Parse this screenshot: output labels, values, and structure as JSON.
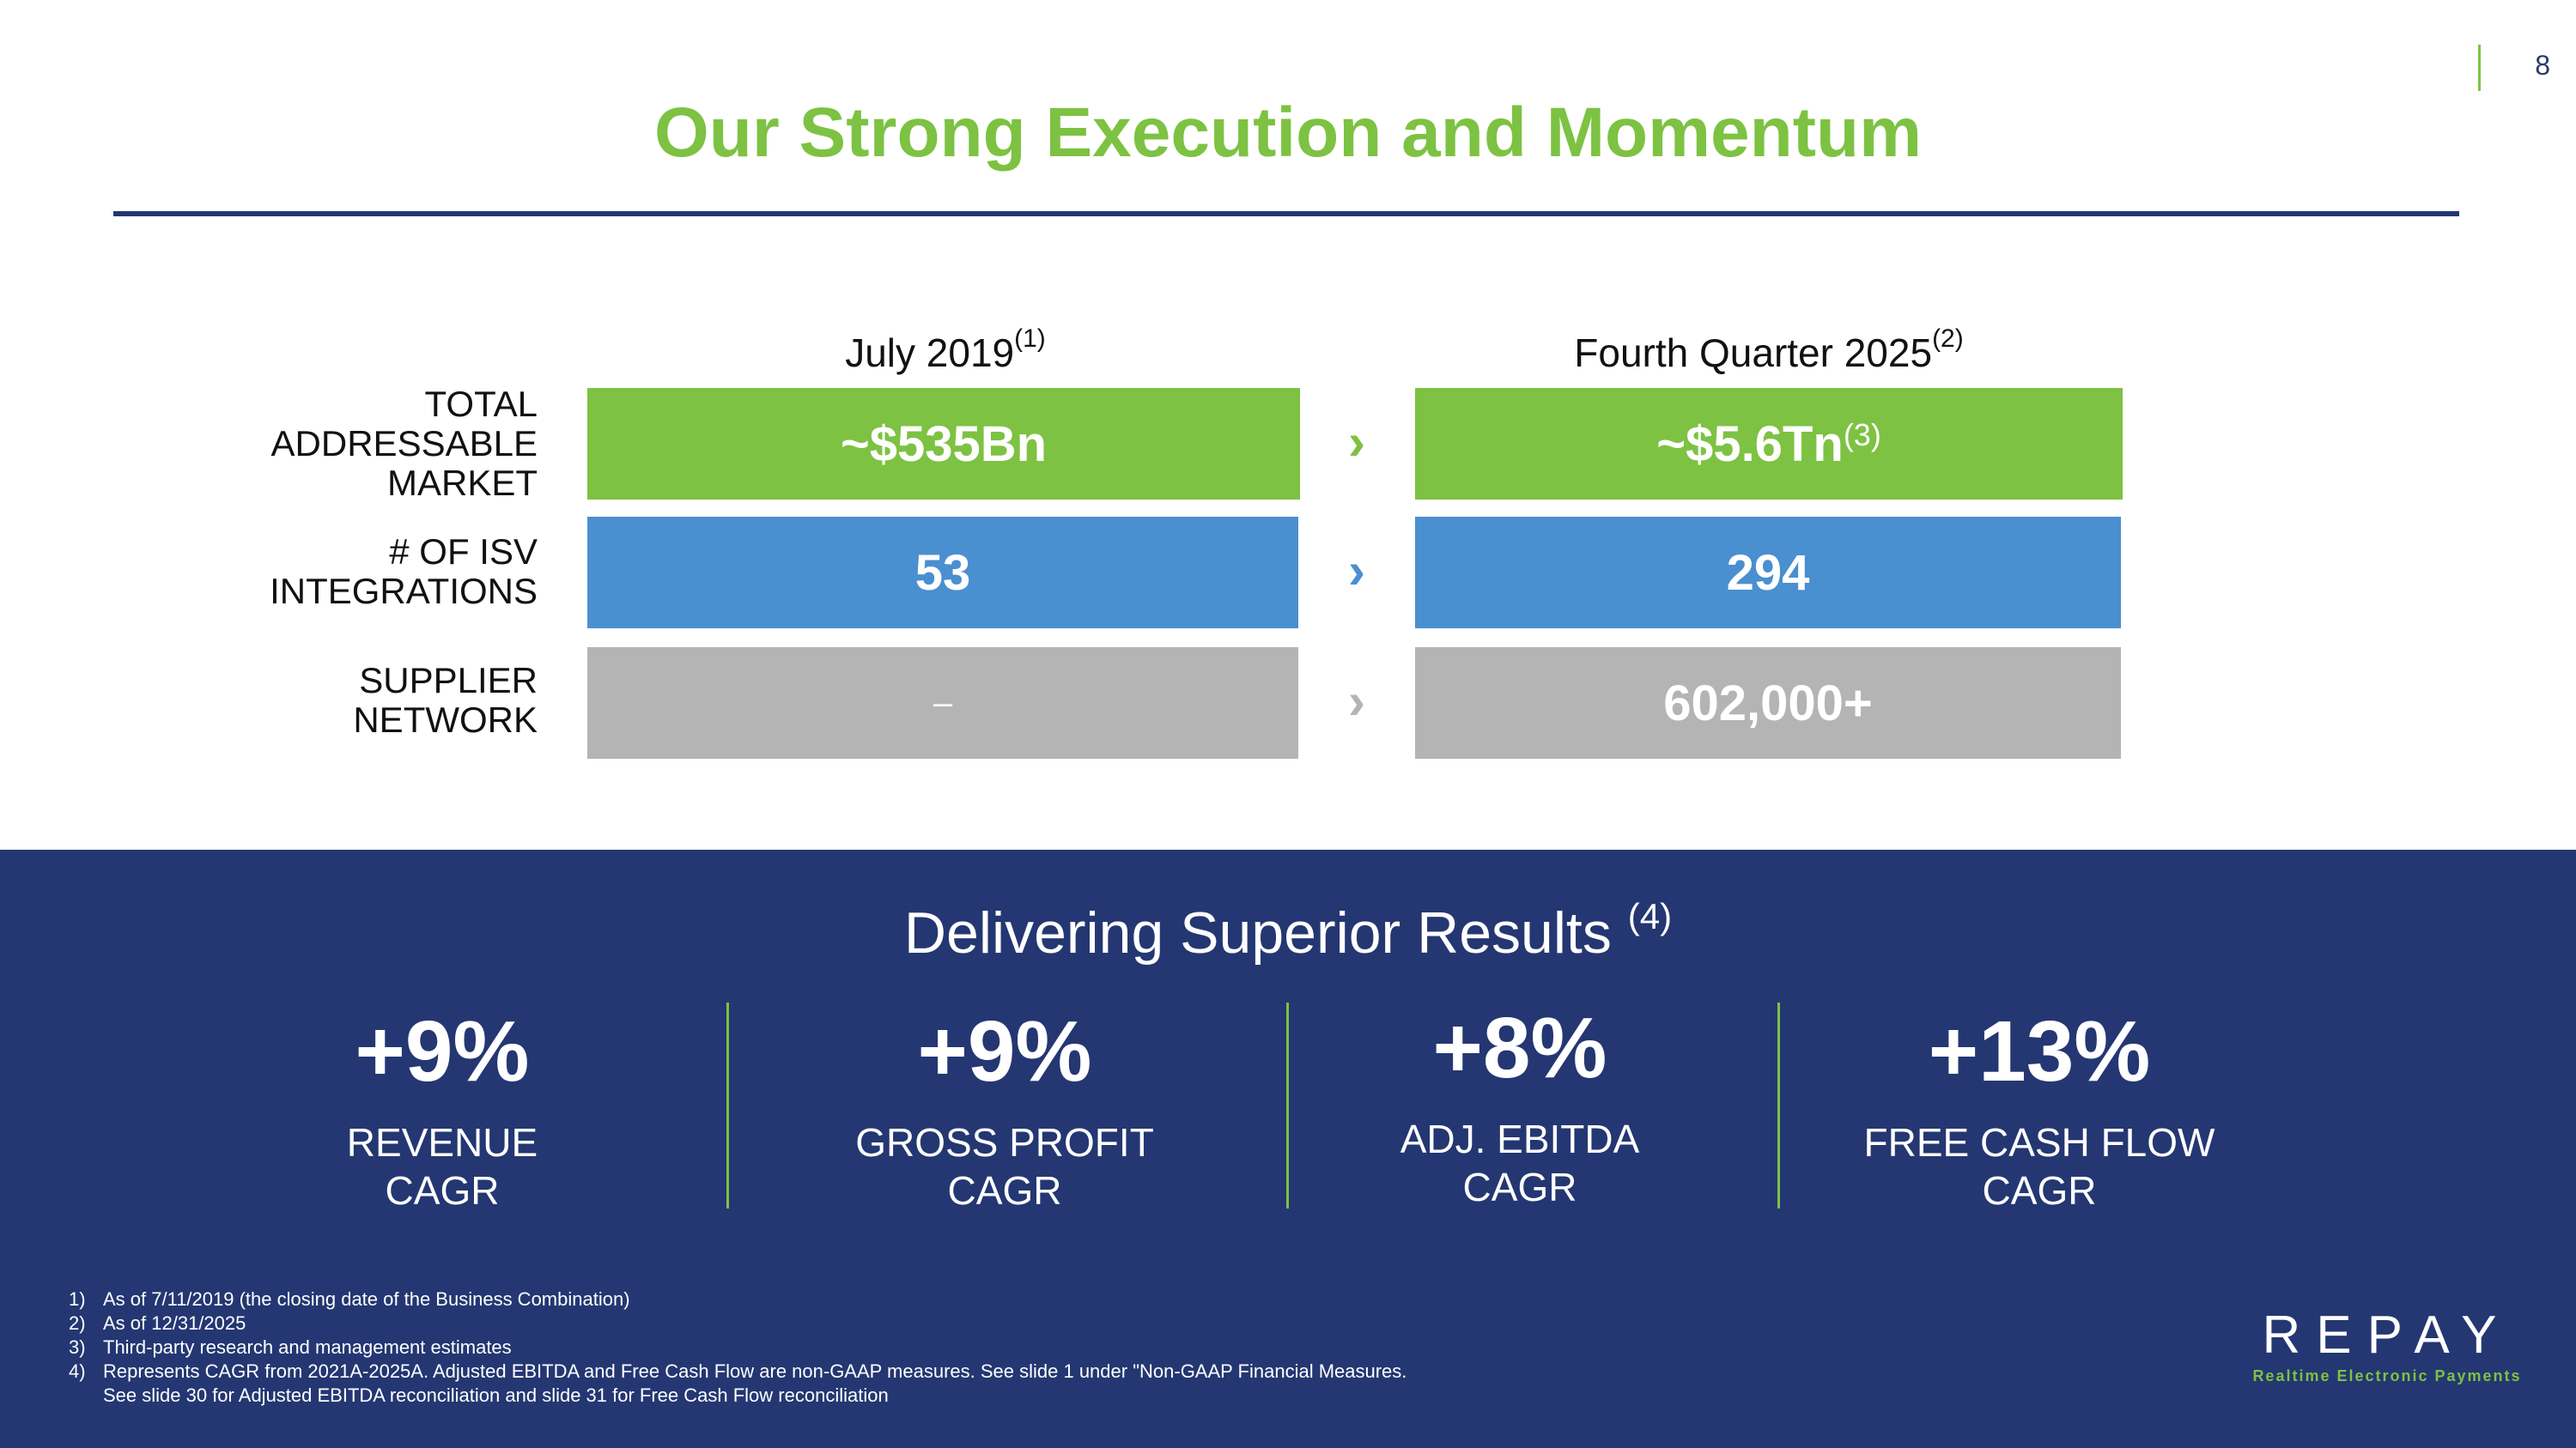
{
  "slide_number": "8",
  "title": "Our Strong Execution and Momentum",
  "columns": [
    {
      "label": "July 2019",
      "note": "(1)"
    },
    {
      "label": "Fourth Quarter 2025",
      "note": "(2)"
    }
  ],
  "rows": [
    {
      "label": "TOTAL ADDRESSABLE MARKET",
      "before": "~$535Bn",
      "after": "~$5.6Tn",
      "after_note": "(3)",
      "color": "#7dc242"
    },
    {
      "label": "# OF ISV INTEGRATIONS",
      "before": "53",
      "after": "294",
      "after_note": "",
      "color": "#4a8fd0"
    },
    {
      "label": "SUPPLIER NETWORK",
      "before": "–",
      "after": "602,000+",
      "after_note": "",
      "color": "#b4b4b4"
    }
  ],
  "chevron_glyph": "›",
  "results": {
    "title": "Delivering Superior Results",
    "note": "(4)",
    "metrics": [
      {
        "value": "+9%",
        "label": "REVENUE CAGR"
      },
      {
        "value": "+9%",
        "label": "GROSS PROFIT CAGR"
      },
      {
        "value": "+8%",
        "label": "ADJ. EBITDA CAGR"
      },
      {
        "value": "+13%",
        "label": "FREE CASH FLOW CAGR"
      }
    ]
  },
  "footnotes": [
    {
      "num": "1)",
      "text": "As of 7/11/2019 (the closing date of the Business Combination)"
    },
    {
      "num": "2)",
      "text": "As of 12/31/2025"
    },
    {
      "num": "3)",
      "text": "Third-party research and management estimates"
    },
    {
      "num": "4)",
      "text": "Represents CAGR from 2021A-2025A. Adjusted EBITDA and Free Cash Flow are non-GAAP measures. See slide 1 under \"Non-GAAP Financial Measures."
    },
    {
      "num": "",
      "text": "See slide 30 for Adjusted EBITDA reconciliation and slide 31 for Free Cash Flow reconciliation"
    }
  ],
  "logo": {
    "word": "REPAY",
    "tagline": "Realtime Electronic Payments"
  },
  "colors": {
    "green": "#7dc242",
    "navy": "#243772",
    "blue": "#4a8fd0",
    "grey": "#b4b4b4"
  }
}
